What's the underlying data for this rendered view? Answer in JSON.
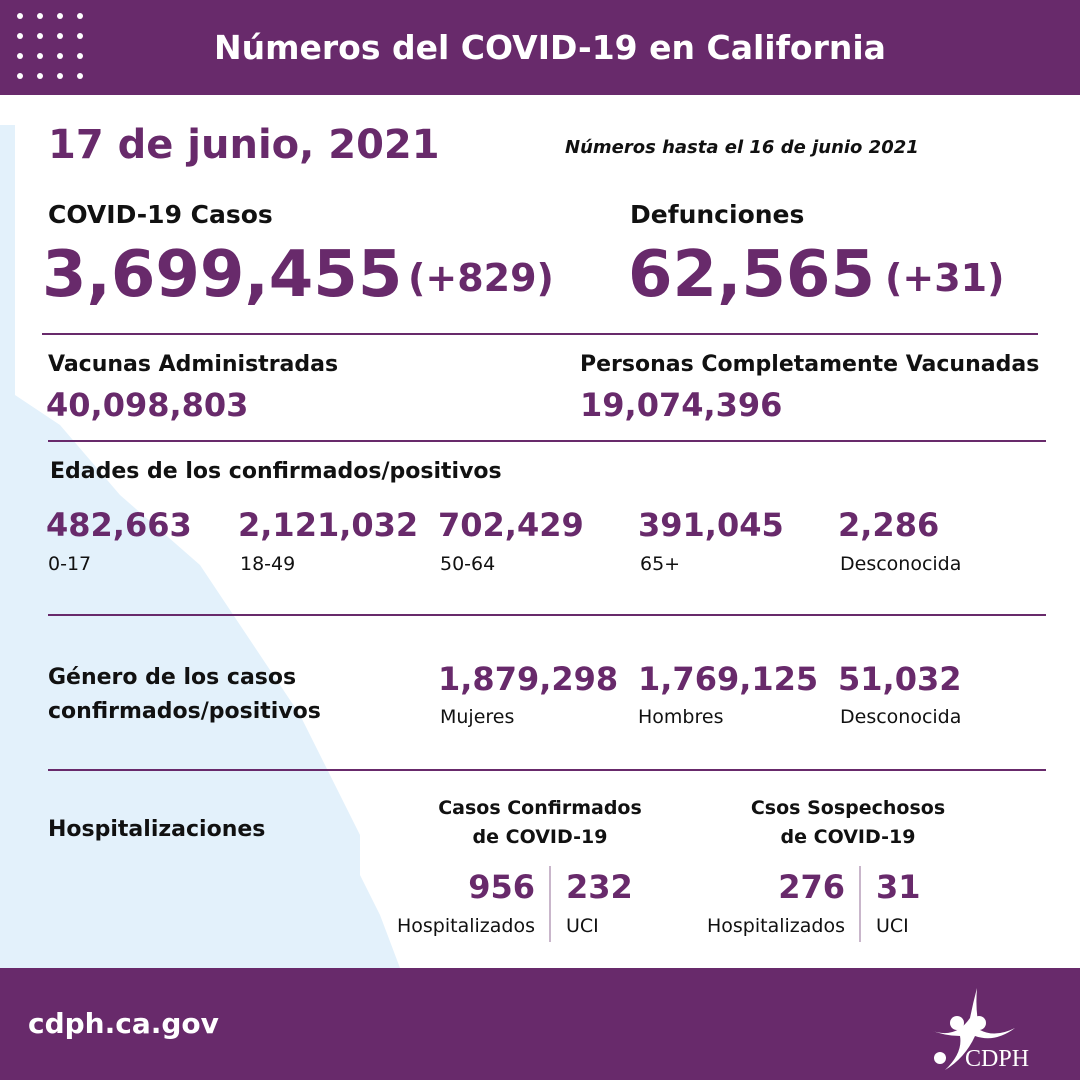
{
  "header": {
    "title": "Números del COVID-19 en California"
  },
  "date": "17 de junio, 2021",
  "data_through": "Números hasta el 16 de junio 2021",
  "cases": {
    "label": "COVID-19 Casos",
    "value": "3,699,455",
    "change": "(+829)"
  },
  "deaths": {
    "label": "Defunciones",
    "value": "62,565",
    "change": "(+31)"
  },
  "vaccines": {
    "label": "Vacunas Administradas",
    "value": "40,098,803"
  },
  "fully_vaccinated": {
    "label": "Personas Completamente Vacunadas",
    "value": "19,074,396"
  },
  "ages": {
    "label": "Edades de los confirmados/positivos",
    "groups": [
      {
        "value": "482,663",
        "label": "0-17"
      },
      {
        "value": "2,121,032",
        "label": "18-49"
      },
      {
        "value": "702,429",
        "label": "50-64"
      },
      {
        "value": "391,045",
        "label": "65+"
      },
      {
        "value": "2,286",
        "label": "Desconocida"
      }
    ]
  },
  "gender": {
    "label_line1": "Género de los casos",
    "label_line2": "confirmados/positivos",
    "groups": [
      {
        "value": "1,879,298",
        "label": "Mujeres"
      },
      {
        "value": "1,769,125",
        "label": "Hombres"
      },
      {
        "value": "51,032",
        "label": "Desconocida"
      }
    ]
  },
  "hosp": {
    "label": "Hospitalizaciones",
    "confirmed": {
      "title1": "Casos Confirmados",
      "title2": "de COVID-19",
      "hosp_value": "956",
      "hosp_label": "Hospitalizados",
      "icu_value": "232",
      "icu_label": "UCI"
    },
    "suspected": {
      "title1": "Csos Sospechosos",
      "title2": "de COVID-19",
      "hosp_value": "276",
      "hosp_label": "Hospitalizados",
      "icu_value": "31",
      "icu_label": "UCI"
    }
  },
  "footer": {
    "url": "cdph.ca.gov",
    "logo_text": "CDPH"
  },
  "colors": {
    "brand": "#682a6b",
    "map": "#e3f1fb"
  }
}
